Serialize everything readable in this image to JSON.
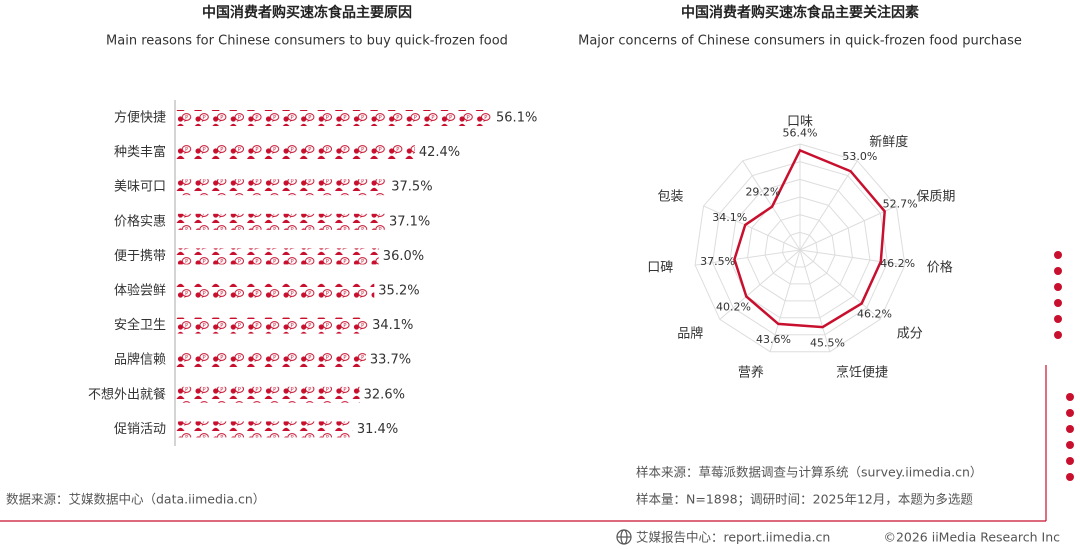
{
  "chart_data": [
    {
      "type": "pictograph",
      "title": "中国消费者购买速冻食品主要原因",
      "subtitle": "Main reasons for Chinese consumers to buy quick-frozen food",
      "categories": [
        "方便快捷",
        "种类丰富",
        "美味可口",
        "价格实惠",
        "便于携带",
        "体验尝鲜",
        "安全卫生",
        "品牌信赖",
        "不想外出就餐",
        "促销活动"
      ],
      "values": [
        56.1,
        42.4,
        37.5,
        37.1,
        36.0,
        35.2,
        34.1,
        33.7,
        32.6,
        31.4
      ],
      "value_labels": [
        "56.1%",
        "42.4%",
        "37.5%",
        "37.1%",
        "36.0%",
        "35.2%",
        "34.1%",
        "33.7%",
        "32.6%",
        "31.4%"
      ],
      "color": "#c8102e",
      "xlim": [
        0,
        60
      ],
      "source": "数据来源：艾媒数据中心（data.iimedia.cn）"
    },
    {
      "type": "radar",
      "title": "中国消费者购买速冻食品主要关注因素",
      "subtitle": "Major concerns of Chinese consumers in quick-frozen food purchase",
      "categories": [
        "口味",
        "新鲜度",
        "保质期",
        "价格",
        "成分",
        "烹饪便捷",
        "营养",
        "品牌",
        "口碑",
        "包装",
        null
      ],
      "values": [
        56.4,
        53.0,
        52.7,
        46.2,
        46.2,
        45.5,
        43.6,
        40.2,
        37.5,
        34.1,
        29.2
      ],
      "value_labels": [
        "56.4%",
        "53.0%",
        "52.7%",
        "46.2%",
        "46.2%",
        "45.5%",
        "43.6%",
        "40.2%",
        "37.5%",
        "34.1%",
        "29.2%"
      ],
      "color": "#c8102e",
      "ylim": [
        0,
        60
      ],
      "yticks": [
        10,
        20,
        30,
        40,
        50,
        60
      ],
      "grid": true,
      "sample_source": "样本来源：草莓派数据调查与计算系统（survey.iimedia.cn）",
      "sample_note": "样本量：N=1898；调研时间：2025年12月，本题为多选题"
    }
  ],
  "footer": {
    "brand": "艾媒报告中心：report.iimedia.cn",
    "copyright": "©2026  iiMedia Research  Inc"
  }
}
